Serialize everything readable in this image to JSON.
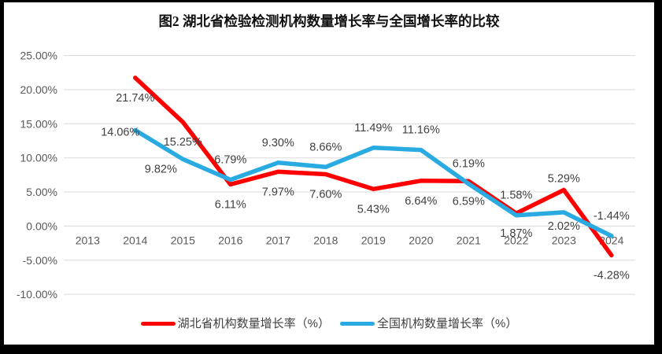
{
  "title": "图2 湖北省检验检测机构数量增长率与全国增长率的比较",
  "colors": {
    "hubei_line": "#FF0000",
    "national_line": "#29ABE2",
    "grid": "#D9D9D9",
    "axis_text": "#595959",
    "data_label": "#404040",
    "frame_border": "#000000",
    "background": "#FFFFFF"
  },
  "chart_data": {
    "type": "line",
    "title": "图2 湖北省检验检测机构数量增长率与全国增长率的比较",
    "xlabel": "",
    "ylabel": "",
    "categories": [
      "2013",
      "2014",
      "2015",
      "2016",
      "2017",
      "2018",
      "2019",
      "2020",
      "2021",
      "2022",
      "2023",
      "2024"
    ],
    "series": [
      {
        "name": "湖北省机构数量增长率（%）",
        "color": "#FF0000",
        "values": [
          null,
          21.74,
          15.25,
          6.11,
          7.97,
          7.6,
          5.43,
          6.64,
          6.59,
          1.87,
          5.29,
          -4.28
        ],
        "label_pos": [
          null,
          "below",
          "below",
          "below",
          "below",
          "below",
          "below",
          "below",
          "below",
          "below",
          "above-tight",
          "below"
        ]
      },
      {
        "name": "全国机构数量增长率（%）",
        "color": "#29ABE2",
        "values": [
          null,
          14.06,
          9.82,
          6.79,
          9.3,
          8.66,
          11.49,
          11.16,
          6.19,
          1.58,
          2.02,
          -1.44
        ],
        "label_pos": [
          null,
          "left",
          "below-left",
          "above",
          "above",
          "above",
          "above",
          "above",
          "above",
          "above",
          "below-near",
          "above"
        ]
      }
    ],
    "ylim": [
      -10,
      25
    ],
    "ytick_step": 5,
    "ytick_format": "0.00%",
    "grid": true,
    "legend_position": "bottom"
  }
}
